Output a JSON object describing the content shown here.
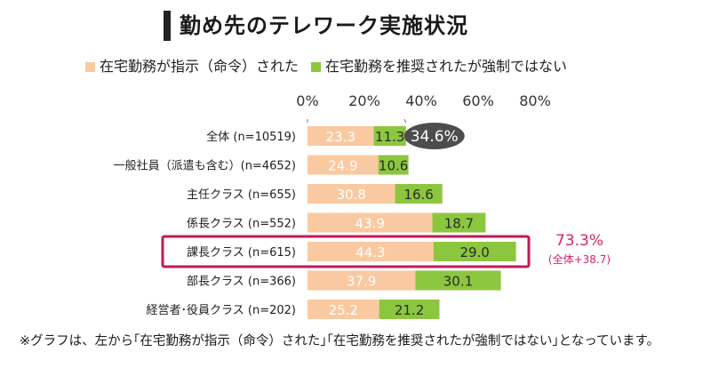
{
  "title": "勤め先のテレワーク実施状況",
  "legend": [
    {
      "label": "在宅勤務が指示（命令）された",
      "color": "#f9c9a1"
    },
    {
      "label": "在宅勤務を推奨されたが強制ではない",
      "color": "#8cc63f"
    }
  ],
  "footnote": "※グラフは、左から｢在宅勤務が指示（命令）された｣｢在宅勤務を推奨されたが強制ではない｣となっています。",
  "chart_data": {
    "type": "bar",
    "orientation": "horizontal",
    "stacked": true,
    "title": "勤め先のテレワーク実施状況",
    "xlim": [
      0,
      80
    ],
    "x_ticks": [
      "0%",
      "20%",
      "40%",
      "60%",
      "80%"
    ],
    "categories": [
      "全体 (n=10519)",
      "一般社員（派遣も含む）(n=4652)",
      "主任クラス (n=655)",
      "係長クラス (n=552)",
      "課長クラス (n=615)",
      "部長クラス (n=366)",
      "経営者･役員クラス (n=202)"
    ],
    "series": [
      {
        "name": "在宅勤務が指示（命令）された",
        "color": "#f9c9a1",
        "values": [
          23.3,
          24.9,
          30.8,
          43.9,
          44.3,
          37.9,
          25.2
        ]
      },
      {
        "name": "在宅勤務を推奨されたが強制ではない",
        "color": "#8cc63f",
        "values": [
          11.3,
          10.6,
          16.6,
          18.7,
          29.0,
          30.1,
          21.2
        ]
      }
    ],
    "value_labels": [
      [
        "23.3",
        "24.9",
        "30.8",
        "43.9",
        "44.3",
        "37.9",
        "25.2"
      ],
      [
        "11.3",
        "10.6",
        "16.6",
        "18.7",
        "29.0",
        "30.1",
        "21.2"
      ]
    ],
    "highlight_index": 4,
    "annotations": {
      "total_bubble": "34.6%",
      "highlight_total": "73.3%",
      "highlight_diff": "(全体+38.7)"
    }
  }
}
